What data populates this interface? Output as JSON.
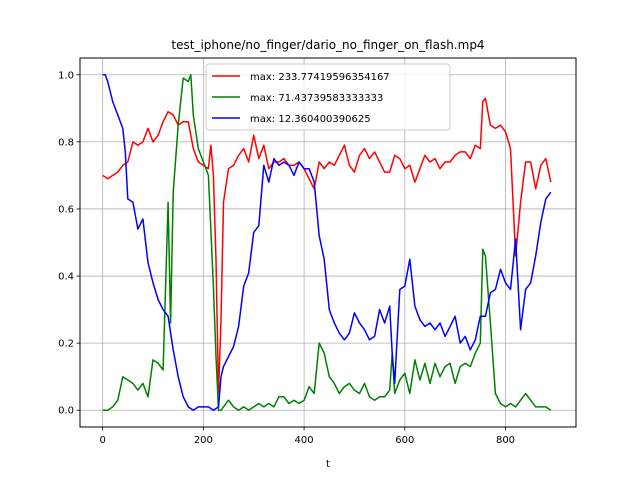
{
  "chart_data": {
    "type": "line",
    "title": "test_iphone/no_finger/dario_no_finger_on_flash.mp4",
    "xlabel": "t",
    "ylabel": "",
    "xlim": [
      -45,
      940
    ],
    "ylim": [
      -0.05,
      1.05
    ],
    "xticks": [
      0,
      200,
      400,
      600,
      800
    ],
    "yticks": [
      0.0,
      0.2,
      0.4,
      0.6,
      0.8,
      1.0
    ],
    "xtick_labels": [
      "0",
      "200",
      "400",
      "600",
      "800"
    ],
    "ytick_labels": [
      "0.0",
      "0.2",
      "0.4",
      "0.6",
      "0.8",
      "1.0"
    ],
    "grid": true,
    "legend_position": "top-center",
    "series": [
      {
        "name": "max: 233.77419596354167",
        "color": "#ff0000",
        "x": [
          0,
          10,
          20,
          30,
          40,
          50,
          60,
          70,
          80,
          90,
          100,
          110,
          120,
          130,
          140,
          150,
          160,
          170,
          180,
          190,
          200,
          210,
          215,
          220,
          225,
          230,
          235,
          240,
          250,
          260,
          270,
          280,
          290,
          300,
          310,
          320,
          330,
          340,
          350,
          360,
          370,
          380,
          390,
          400,
          410,
          420,
          430,
          440,
          450,
          460,
          470,
          480,
          490,
          500,
          510,
          520,
          530,
          540,
          550,
          560,
          570,
          580,
          590,
          600,
          610,
          620,
          630,
          640,
          650,
          660,
          670,
          680,
          690,
          700,
          710,
          720,
          730,
          740,
          750,
          755,
          760,
          770,
          780,
          790,
          800,
          810,
          820,
          830,
          840,
          850,
          860,
          870,
          880,
          890
        ],
        "values": [
          0.7,
          0.69,
          0.7,
          0.71,
          0.73,
          0.74,
          0.8,
          0.79,
          0.8,
          0.84,
          0.8,
          0.82,
          0.86,
          0.89,
          0.88,
          0.85,
          0.86,
          0.86,
          0.78,
          0.74,
          0.73,
          0.72,
          0.79,
          0.7,
          0.45,
          0.05,
          0.27,
          0.62,
          0.72,
          0.73,
          0.76,
          0.78,
          0.74,
          0.82,
          0.75,
          0.79,
          0.72,
          0.74,
          0.74,
          0.75,
          0.73,
          0.73,
          0.74,
          0.72,
          0.69,
          0.66,
          0.74,
          0.72,
          0.74,
          0.73,
          0.76,
          0.79,
          0.73,
          0.71,
          0.76,
          0.78,
          0.75,
          0.77,
          0.74,
          0.71,
          0.71,
          0.76,
          0.75,
          0.72,
          0.73,
          0.68,
          0.72,
          0.76,
          0.74,
          0.75,
          0.72,
          0.74,
          0.74,
          0.76,
          0.77,
          0.77,
          0.75,
          0.79,
          0.78,
          0.92,
          0.93,
          0.85,
          0.84,
          0.85,
          0.83,
          0.78,
          0.46,
          0.62,
          0.74,
          0.74,
          0.66,
          0.73,
          0.75,
          0.68
        ]
      },
      {
        "name": "max: 71.43739583333333",
        "color": "#008000",
        "x": [
          0,
          10,
          20,
          30,
          40,
          50,
          60,
          70,
          80,
          90,
          100,
          110,
          120,
          130,
          135,
          140,
          150,
          160,
          170,
          175,
          180,
          190,
          200,
          210,
          220,
          225,
          230,
          235,
          240,
          250,
          260,
          270,
          280,
          290,
          300,
          310,
          320,
          330,
          340,
          350,
          360,
          370,
          380,
          390,
          400,
          410,
          420,
          430,
          440,
          450,
          460,
          470,
          480,
          490,
          500,
          510,
          520,
          530,
          540,
          550,
          560,
          570,
          575,
          580,
          590,
          600,
          610,
          620,
          630,
          640,
          650,
          660,
          670,
          680,
          690,
          700,
          710,
          720,
          730,
          740,
          750,
          755,
          760,
          770,
          780,
          790,
          800,
          810,
          820,
          830,
          840,
          850,
          860,
          870,
          880,
          890
        ],
        "values": [
          0.0,
          0.0,
          0.01,
          0.03,
          0.1,
          0.09,
          0.08,
          0.06,
          0.08,
          0.04,
          0.15,
          0.14,
          0.12,
          0.62,
          0.26,
          0.65,
          0.85,
          0.99,
          0.98,
          1.0,
          0.88,
          0.78,
          0.74,
          0.7,
          0.37,
          0.16,
          0.0,
          0.0,
          0.01,
          0.03,
          0.01,
          0.0,
          0.01,
          0.0,
          0.01,
          0.02,
          0.01,
          0.02,
          0.01,
          0.04,
          0.04,
          0.02,
          0.03,
          0.02,
          0.03,
          0.07,
          0.05,
          0.2,
          0.17,
          0.1,
          0.08,
          0.05,
          0.07,
          0.08,
          0.06,
          0.05,
          0.08,
          0.04,
          0.03,
          0.04,
          0.04,
          0.06,
          0.17,
          0.05,
          0.09,
          0.11,
          0.05,
          0.15,
          0.09,
          0.14,
          0.08,
          0.14,
          0.1,
          0.13,
          0.14,
          0.08,
          0.13,
          0.14,
          0.13,
          0.17,
          0.2,
          0.48,
          0.46,
          0.26,
          0.05,
          0.02,
          0.01,
          0.02,
          0.01,
          0.03,
          0.05,
          0.03,
          0.01,
          0.01,
          0.01,
          0.0
        ]
      },
      {
        "name": "max: 12.360400390625",
        "color": "#0000ff",
        "x": [
          0,
          5,
          10,
          20,
          30,
          40,
          45,
          50,
          60,
          70,
          80,
          90,
          100,
          110,
          120,
          130,
          140,
          150,
          160,
          170,
          180,
          190,
          200,
          210,
          220,
          230,
          235,
          240,
          250,
          260,
          270,
          280,
          290,
          300,
          310,
          320,
          330,
          340,
          350,
          360,
          370,
          380,
          390,
          400,
          410,
          420,
          430,
          440,
          450,
          460,
          470,
          480,
          490,
          500,
          510,
          520,
          530,
          540,
          550,
          560,
          570,
          575,
          580,
          590,
          600,
          610,
          620,
          630,
          640,
          650,
          660,
          670,
          680,
          690,
          700,
          710,
          720,
          730,
          740,
          750,
          760,
          770,
          780,
          790,
          800,
          810,
          820,
          830,
          840,
          850,
          860,
          870,
          880,
          890
        ],
        "values": [
          1.0,
          1.0,
          0.98,
          0.92,
          0.88,
          0.84,
          0.77,
          0.63,
          0.62,
          0.54,
          0.57,
          0.44,
          0.38,
          0.33,
          0.3,
          0.28,
          0.18,
          0.1,
          0.04,
          0.01,
          0.0,
          0.01,
          0.01,
          0.01,
          0.0,
          0.01,
          0.1,
          0.13,
          0.16,
          0.19,
          0.25,
          0.37,
          0.41,
          0.53,
          0.55,
          0.73,
          0.68,
          0.75,
          0.73,
          0.74,
          0.73,
          0.7,
          0.74,
          0.72,
          0.72,
          0.68,
          0.52,
          0.45,
          0.3,
          0.26,
          0.23,
          0.21,
          0.23,
          0.29,
          0.26,
          0.24,
          0.21,
          0.22,
          0.3,
          0.26,
          0.31,
          0.17,
          0.08,
          0.36,
          0.37,
          0.45,
          0.31,
          0.27,
          0.25,
          0.26,
          0.24,
          0.26,
          0.22,
          0.25,
          0.28,
          0.2,
          0.22,
          0.18,
          0.21,
          0.28,
          0.28,
          0.35,
          0.36,
          0.42,
          0.38,
          0.36,
          0.51,
          0.24,
          0.36,
          0.38,
          0.46,
          0.56,
          0.63,
          0.65
        ]
      }
    ]
  }
}
